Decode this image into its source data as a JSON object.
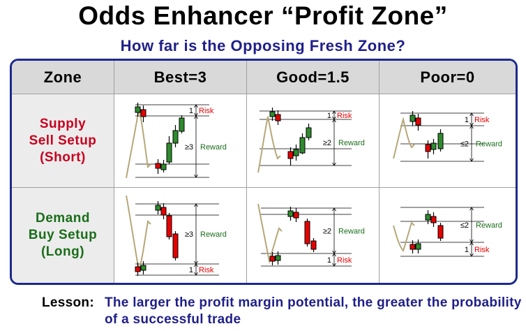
{
  "title": "Odds Enhancer “Profit Zone”",
  "subtitle": "How far is the Opposing Fresh Zone?",
  "table": {
    "headers": [
      "Zone",
      "Best=3",
      "Good=1.5",
      "Poor=0"
    ],
    "rows": [
      {
        "label_lines": [
          "Supply",
          "Sell Setup",
          "(Short)"
        ],
        "label_color": "#c8001e"
      },
      {
        "label_lines": [
          "Demand",
          "Buy Setup",
          "(Long)"
        ],
        "label_color": "#1a6e1a"
      }
    ]
  },
  "cell_labels": {
    "risk": "Risk",
    "reward": "Reward",
    "one": "1",
    "best": "≥3",
    "good": "≥2",
    "poor": "≤2"
  },
  "colors": {
    "frame": "#1c2a8c",
    "header_bg": "#d9d9d9",
    "label_bg": "#ececec",
    "candle_green": "#2e8b2e",
    "candle_red": "#e60000",
    "price_path": "#b5a878",
    "risk_text": "#e60000",
    "reward_text": "#1a6e1a"
  },
  "lesson": {
    "label": "Lesson:",
    "text": "The larger the profit margin potential, the greater the probability of a successful trade"
  }
}
